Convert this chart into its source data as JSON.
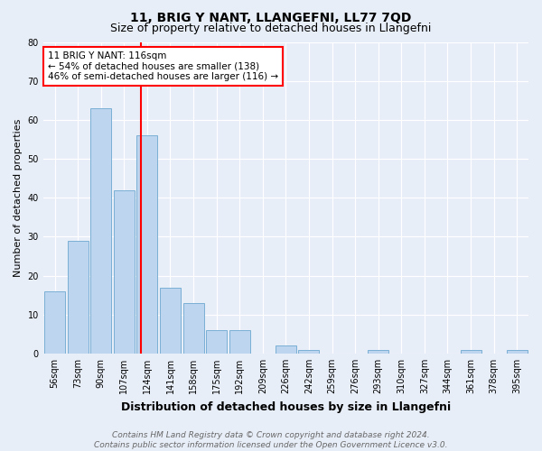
{
  "title": "11, BRIG Y NANT, LLANGEFNI, LL77 7QD",
  "subtitle": "Size of property relative to detached houses in Llangefni",
  "xlabel": "Distribution of detached houses by size in Llangefni",
  "ylabel": "Number of detached properties",
  "bar_labels": [
    "56sqm",
    "73sqm",
    "90sqm",
    "107sqm",
    "124sqm",
    "141sqm",
    "158sqm",
    "175sqm",
    "192sqm",
    "209sqm",
    "226sqm",
    "242sqm",
    "259sqm",
    "276sqm",
    "293sqm",
    "310sqm",
    "327sqm",
    "344sqm",
    "361sqm",
    "378sqm",
    "395sqm"
  ],
  "bar_values": [
    16,
    29,
    63,
    42,
    56,
    17,
    13,
    6,
    6,
    0,
    2,
    1,
    0,
    0,
    1,
    0,
    0,
    0,
    1,
    0,
    1
  ],
  "bar_color": "#bdd5ee",
  "bar_edge_color": "#7aafd4",
  "vline_x": 3.73,
  "vline_color": "red",
  "annotation_text": "11 BRIG Y NANT: 116sqm\n← 54% of detached houses are smaller (138)\n46% of semi-detached houses are larger (116) →",
  "annotation_box_color": "white",
  "annotation_box_edge_color": "red",
  "ylim": [
    0,
    80
  ],
  "yticks": [
    0,
    10,
    20,
    30,
    40,
    50,
    60,
    70,
    80
  ],
  "footer": "Contains HM Land Registry data © Crown copyright and database right 2024.\nContains public sector information licensed under the Open Government Licence v3.0.",
  "background_color": "#e8eef8",
  "plot_background_color": "#e8eef8",
  "title_fontsize": 10,
  "subtitle_fontsize": 9,
  "xlabel_fontsize": 9,
  "ylabel_fontsize": 8,
  "tick_fontsize": 7,
  "annotation_fontsize": 7.5,
  "footer_fontsize": 6.5
}
